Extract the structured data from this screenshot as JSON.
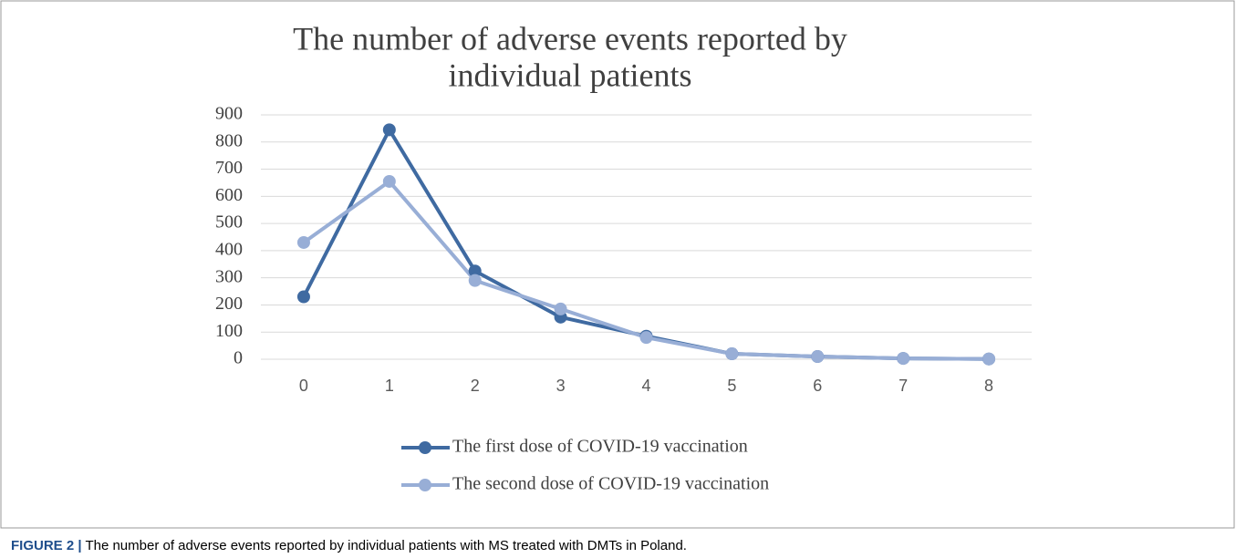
{
  "chart_data": {
    "type": "line",
    "title": [
      "The number of adverse events reported  by",
      "individual patients"
    ],
    "categories": [
      "0",
      "1",
      "2",
      "3",
      "4",
      "5",
      "6",
      "7",
      "8"
    ],
    "series": [
      {
        "name": "The first dose of COVID-19 vaccination",
        "color": "#3f6aa1",
        "values": [
          230,
          845,
          325,
          155,
          85,
          20,
          10,
          3,
          1
        ]
      },
      {
        "name": "The second dose of COVID-19 vaccination",
        "color": "#98aed6",
        "values": [
          430,
          655,
          290,
          185,
          80,
          20,
          10,
          3,
          1
        ]
      }
    ],
    "ylim": [
      0,
      900
    ],
    "yticks": [
      0,
      100,
      200,
      300,
      400,
      500,
      600,
      700,
      800,
      900
    ],
    "grid": true,
    "legend": "bottom",
    "caption": {
      "label": "FIGURE 2 |",
      "text": "The number of adverse events reported by individual patients with MS treated with DMTs in Poland."
    }
  }
}
